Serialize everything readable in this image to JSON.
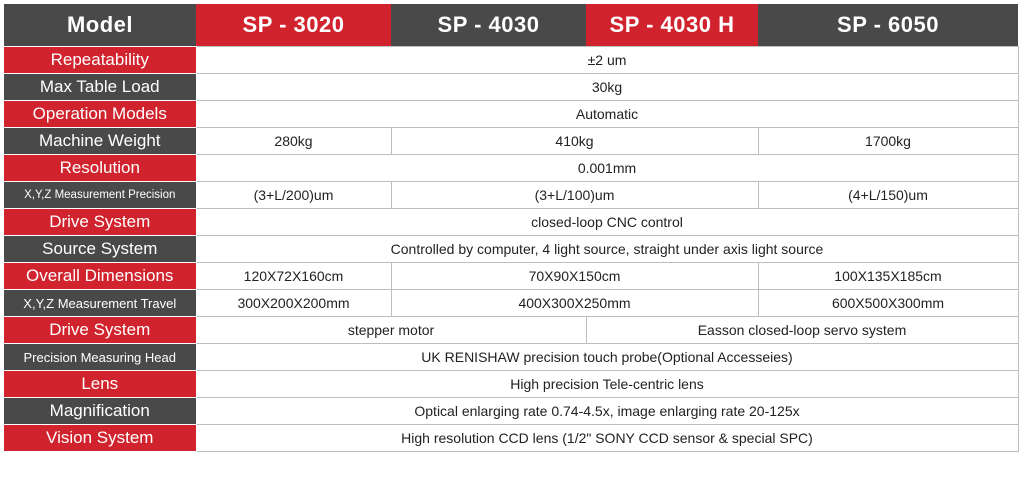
{
  "header": {
    "model": "Model",
    "sp3020": "SP - 3020",
    "sp4030": "SP - 4030",
    "sp4030h": "SP - 4030 H",
    "sp6050": "SP - 6050"
  },
  "rows": {
    "repeatability": {
      "label": "Repeatability",
      "value": "±2 um"
    },
    "max_table_load": {
      "label": "Max Table Load",
      "value": "30kg"
    },
    "operation_models": {
      "label": "Operation Models",
      "value": "Automatic"
    },
    "machine_weight": {
      "label": "Machine Weight",
      "v1": "280kg",
      "v2": "410kg",
      "v3": "1700kg"
    },
    "resolution": {
      "label": "Resolution",
      "value": "0.001mm"
    },
    "xyz_precision": {
      "label": "X,Y,Z Measurement Precision",
      "v1": "(3+L/200)um",
      "v2": "(3+L/100)um",
      "v3": "(4+L/150)um"
    },
    "drive_system_1": {
      "label": "Drive System",
      "value": "closed-loop CNC control"
    },
    "source_system": {
      "label": "Source System",
      "value": "Controlled by computer,  4 light source, straight under axis light source"
    },
    "overall_dimensions": {
      "label": "Overall Dimensions",
      "v1": "120X72X160cm",
      "v2": "70X90X150cm",
      "v3": "100X135X185cm"
    },
    "xyz_travel": {
      "label": "X,Y,Z Measurement Travel",
      "v1": "300X200X200mm",
      "v2": "400X300X250mm",
      "v3": "600X500X300mm"
    },
    "drive_system_2": {
      "label": "Drive System",
      "v1": "stepper motor",
      "v2": "Easson closed-loop servo system"
    },
    "measuring_head": {
      "label": "Precision Measuring Head",
      "value": "UK RENISHAW precision touch probe(Optional Accesseies)"
    },
    "lens": {
      "label": "Lens",
      "value": "High precision Tele-centric lens"
    },
    "magnification": {
      "label": "Magnification",
      "value": "Optical enlarging rate 0.74-4.5x, image enlarging rate 20-125x"
    },
    "vision_system": {
      "label": "Vision System",
      "value": "High resolution CCD lens (1/2\" SONY CCD sensor & special SPC)"
    }
  }
}
